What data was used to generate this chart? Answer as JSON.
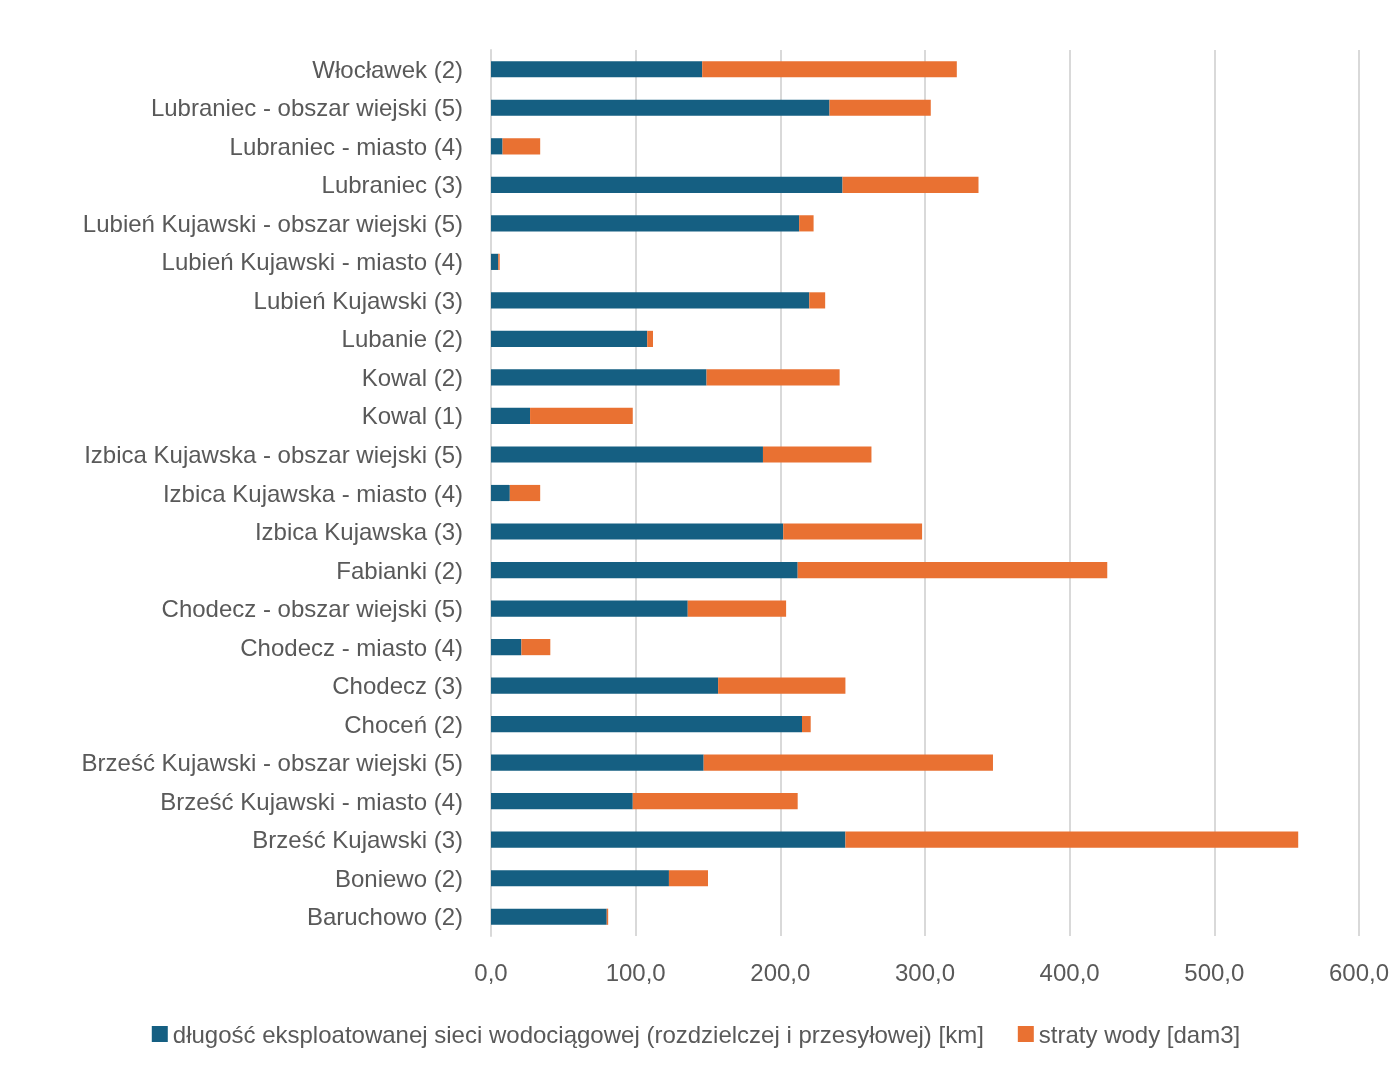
{
  "chart_data": {
    "type": "bar",
    "orientation": "horizontal",
    "stacked": true,
    "categories": [
      "Włocławek (2)",
      "Lubraniec - obszar wiejski (5)",
      "Lubraniec - miasto (4)",
      "Lubraniec (3)",
      "Lubień Kujawski - obszar wiejski (5)",
      "Lubień Kujawski - miasto (4)",
      "Lubień Kujawski (3)",
      "Lubanie (2)",
      "Kowal (2)",
      "Kowal (1)",
      "Izbica Kujawska - obszar wiejski (5)",
      "Izbica Kujawska - miasto (4)",
      "Izbica Kujawska (3)",
      "Fabianki (2)",
      "Chodecz - obszar wiejski (5)",
      "Chodecz - miasto (4)",
      "Chodecz (3)",
      "Choceń (2)",
      "Brześć Kujawski - obszar wiejski (5)",
      "Brześć Kujawski - miasto (4)",
      "Brześć Kujawski (3)",
      "Boniewo (2)",
      "Baruchowo (2)"
    ],
    "series": [
      {
        "name": "długość eksploatowanej sieci wodociągowej (rozdzielczej i przesyłowej) [km]",
        "color": "#155f82",
        "values": [
          146,
          234,
          8,
          243,
          213,
          5,
          220,
          108,
          149,
          27,
          188,
          13,
          202,
          212,
          136,
          21,
          157,
          215,
          147,
          98,
          245,
          123,
          80
        ]
      },
      {
        "name": "straty wody [dam3]",
        "color": "#e97132",
        "values": [
          176,
          70,
          26,
          94,
          10,
          1,
          11,
          4,
          92,
          71,
          75,
          21,
          96,
          214,
          68,
          20,
          88,
          6,
          200,
          114,
          313,
          27,
          1
        ]
      }
    ],
    "xlim": [
      0,
      600
    ],
    "xticks": [
      {
        "value": 0,
        "label": "0,0"
      },
      {
        "value": 100,
        "label": "100,0"
      },
      {
        "value": 200,
        "label": "200,0"
      },
      {
        "value": 300,
        "label": "300,0"
      },
      {
        "value": 400,
        "label": "400,0"
      },
      {
        "value": 500,
        "label": "500,0"
      },
      {
        "value": 600,
        "label": "600,0"
      }
    ],
    "grid": "x",
    "legend": "bottom"
  }
}
